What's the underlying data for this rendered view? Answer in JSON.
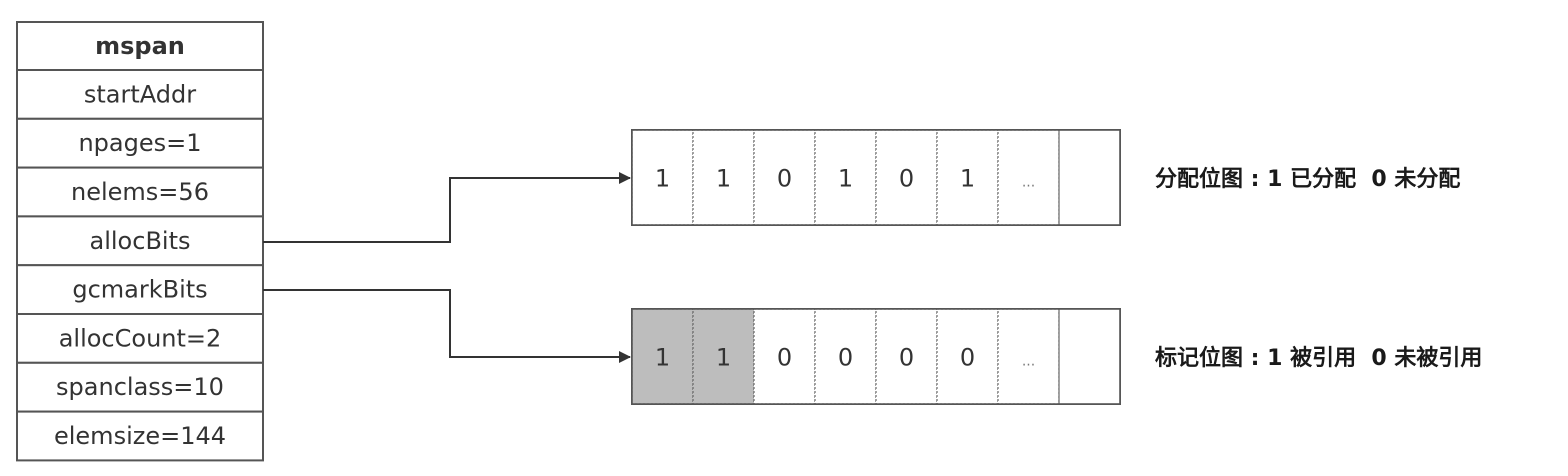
{
  "mspan": {
    "title": "mspan",
    "fields": [
      "startAddr",
      "npages=1",
      "nelems=56",
      "allocBits",
      "gcmarkBits",
      "allocCount=2",
      "spanclass=10",
      "elemsize=144"
    ]
  },
  "alloc_bitmap": {
    "cells": [
      "1",
      "1",
      "0",
      "1",
      "0",
      "1",
      "...",
      ""
    ],
    "shaded": [
      false,
      false,
      false,
      false,
      false,
      false,
      false,
      false
    ],
    "legend": "分配位图 : 1 已分配  0 未分配"
  },
  "gcmark_bitmap": {
    "cells": [
      "1",
      "1",
      "0",
      "0",
      "0",
      "0",
      "...",
      ""
    ],
    "shaded": [
      true,
      true,
      false,
      false,
      false,
      false,
      false,
      false
    ],
    "legend": "标记位图 : 1 被引用  0 未被引用"
  },
  "colors": {
    "border": "#555555",
    "dotted_border": "#666666",
    "shaded_fill": "#bdbdbd",
    "arrow": "#333333"
  }
}
